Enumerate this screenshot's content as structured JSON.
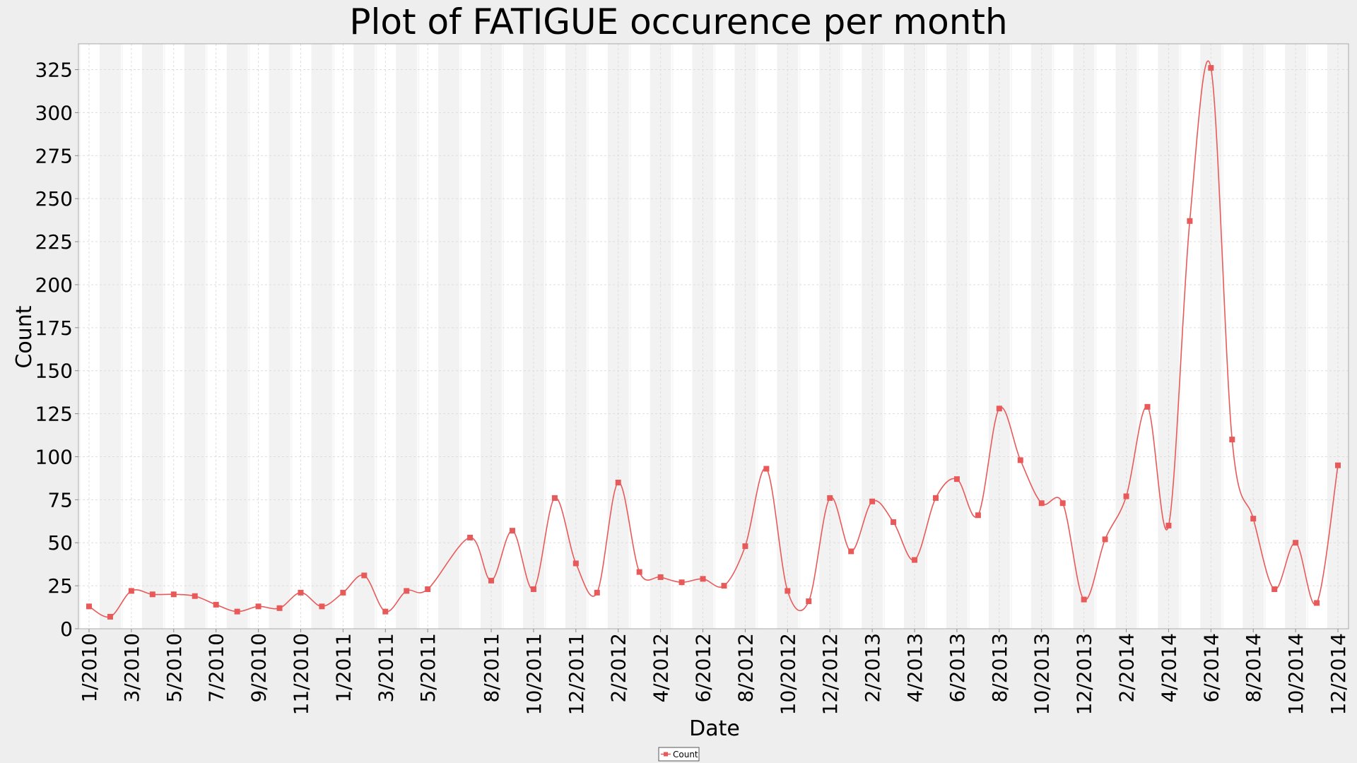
{
  "chart_data": {
    "type": "line",
    "title": "Plot of FATIGUE occurence per month",
    "xlabel": "Date",
    "ylabel": "Count",
    "ylim": [
      0,
      340
    ],
    "yticks": [
      0,
      25,
      50,
      75,
      100,
      125,
      150,
      175,
      200,
      225,
      250,
      275,
      300,
      325
    ],
    "grid": true,
    "legend_position": "bottom-center",
    "x_tick_labels": [
      "1/2010",
      "3/2010",
      "5/2010",
      "7/2010",
      "9/2010",
      "11/2010",
      "1/2011",
      "3/2011",
      "5/2011",
      "8/2011",
      "10/2011",
      "12/2011",
      "2/2012",
      "4/2012",
      "6/2012",
      "8/2012",
      "10/2012",
      "12/2012",
      "2/2013",
      "4/2013",
      "6/2013",
      "8/2013",
      "10/2013",
      "12/2013",
      "2/2014",
      "4/2014",
      "6/2014",
      "8/2014",
      "10/2014",
      "12/2014"
    ],
    "x": [
      "1/2010",
      "2/2010",
      "3/2010",
      "4/2010",
      "5/2010",
      "6/2010",
      "7/2010",
      "8/2010",
      "9/2010",
      "10/2010",
      "11/2010",
      "12/2010",
      "1/2011",
      "2/2011",
      "3/2011",
      "4/2011",
      "5/2011",
      "7/2011",
      "8/2011",
      "9/2011",
      "10/2011",
      "11/2011",
      "12/2011",
      "1/2012",
      "2/2012",
      "3/2012",
      "4/2012",
      "5/2012",
      "6/2012",
      "7/2012",
      "8/2012",
      "9/2012",
      "10/2012",
      "11/2012",
      "12/2012",
      "1/2013",
      "2/2013",
      "3/2013",
      "4/2013",
      "5/2013",
      "6/2013",
      "7/2013",
      "8/2013",
      "9/2013",
      "10/2013",
      "11/2013",
      "12/2013",
      "1/2014",
      "2/2014",
      "3/2014",
      "4/2014",
      "5/2014",
      "6/2014",
      "7/2014",
      "8/2014",
      "9/2014",
      "10/2014",
      "11/2014",
      "12/2014"
    ],
    "series": [
      {
        "name": "Count",
        "color": "#e85a5a",
        "values": [
          13,
          7,
          22,
          20,
          20,
          19,
          14,
          10,
          13,
          12,
          21,
          13,
          21,
          31,
          10,
          22,
          23,
          53,
          28,
          57,
          23,
          76,
          38,
          21,
          85,
          33,
          30,
          27,
          29,
          25,
          48,
          93,
          22,
          16,
          76,
          45,
          74,
          62,
          40,
          76,
          87,
          66,
          128,
          98,
          73,
          73,
          17,
          52,
          77,
          129,
          60,
          237,
          326,
          110,
          64,
          23,
          50,
          15,
          95
        ]
      }
    ],
    "legend": [
      "Count"
    ]
  }
}
